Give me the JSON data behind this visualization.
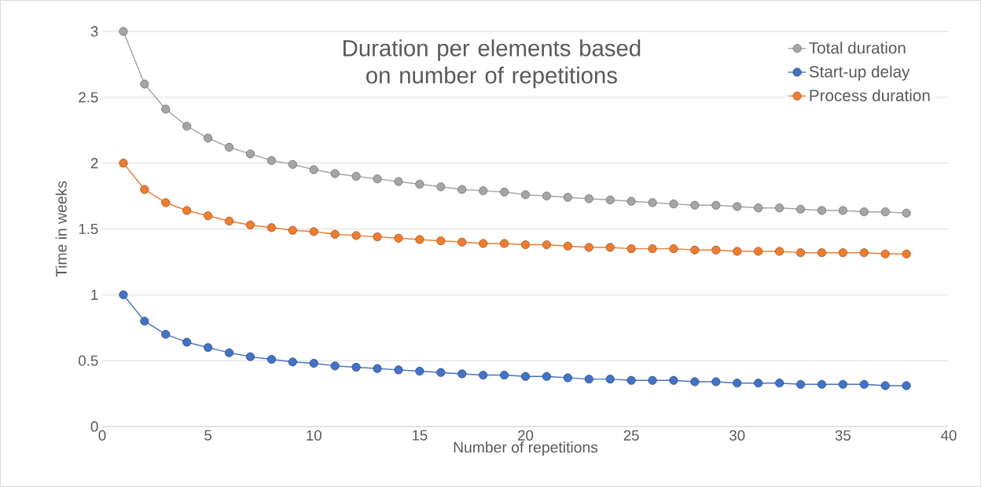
{
  "chart_data": {
    "type": "line",
    "title": "Duration per elements based on number of repetitions",
    "xlabel": "Number of repetitions",
    "ylabel": "Time in weeks",
    "x": [
      1,
      2,
      3,
      4,
      5,
      6,
      7,
      8,
      9,
      10,
      11,
      12,
      13,
      14,
      15,
      16,
      17,
      18,
      19,
      20,
      21,
      22,
      23,
      24,
      25,
      26,
      27,
      28,
      29,
      30,
      31,
      32,
      33,
      34,
      35,
      36,
      37,
      38
    ],
    "series": [
      {
        "name": "Total duration",
        "color": "#a5a5a5",
        "values": [
          3.0,
          2.6,
          2.41,
          2.28,
          2.19,
          2.12,
          2.07,
          2.02,
          1.99,
          1.95,
          1.92,
          1.9,
          1.88,
          1.86,
          1.84,
          1.82,
          1.8,
          1.79,
          1.78,
          1.76,
          1.75,
          1.74,
          1.73,
          1.72,
          1.71,
          1.7,
          1.69,
          1.68,
          1.68,
          1.67,
          1.66,
          1.66,
          1.65,
          1.64,
          1.64,
          1.63,
          1.63,
          1.62
        ]
      },
      {
        "name": "Start-up delay",
        "color": "#4472c4",
        "values": [
          1.0,
          0.8,
          0.7,
          0.64,
          0.6,
          0.56,
          0.53,
          0.51,
          0.49,
          0.48,
          0.46,
          0.45,
          0.44,
          0.43,
          0.42,
          0.41,
          0.4,
          0.39,
          0.39,
          0.38,
          0.38,
          0.37,
          0.36,
          0.36,
          0.35,
          0.35,
          0.35,
          0.34,
          0.34,
          0.33,
          0.33,
          0.33,
          0.32,
          0.32,
          0.32,
          0.32,
          0.31,
          0.31
        ]
      },
      {
        "name": "Process duration",
        "color": "#ed7d31",
        "values": [
          2.0,
          1.8,
          1.7,
          1.64,
          1.6,
          1.56,
          1.53,
          1.51,
          1.49,
          1.48,
          1.46,
          1.45,
          1.44,
          1.43,
          1.42,
          1.41,
          1.4,
          1.39,
          1.39,
          1.38,
          1.38,
          1.37,
          1.36,
          1.36,
          1.35,
          1.35,
          1.35,
          1.34,
          1.34,
          1.33,
          1.33,
          1.33,
          1.32,
          1.32,
          1.32,
          1.32,
          1.31,
          1.31
        ]
      }
    ],
    "xlim": [
      0,
      40
    ],
    "xticks": [
      0,
      5,
      10,
      15,
      20,
      25,
      30,
      35,
      40
    ],
    "ylim": [
      0,
      3
    ],
    "yticks": [
      0,
      0.5,
      1,
      1.5,
      2,
      2.5,
      3
    ],
    "grid": "y",
    "legend": "top right",
    "marker": "circle",
    "line_style": "solid"
  }
}
